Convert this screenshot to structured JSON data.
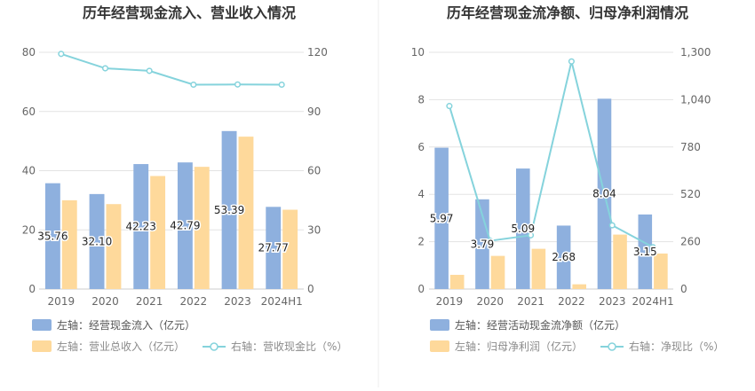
{
  "colors": {
    "bar_primary": "#8eb0de",
    "bar_secondary": "#fed99b",
    "line": "#85d3dc",
    "grid": "#e3e3e3",
    "divider": "#eeeeee"
  },
  "chart_data": [
    {
      "type": "bar",
      "title": "历年经营现金流入、营业收入情况",
      "categories": [
        "2019",
        "2020",
        "2021",
        "2022",
        "2023",
        "2024H1"
      ],
      "series": [
        {
          "name": "左轴：经营现金流入（亿元）",
          "axis": "left",
          "kind": "bar",
          "values": [
            35.76,
            32.1,
            42.23,
            42.79,
            53.39,
            27.77
          ],
          "labels": [
            "35.76",
            "32.10",
            "42.23",
            "42.79",
            "53.39",
            "27.77"
          ]
        },
        {
          "name": "左轴：营业总收入（亿元）",
          "axis": "left",
          "kind": "bar",
          "values": [
            30.0,
            28.7,
            38.2,
            41.3,
            51.5,
            26.8
          ]
        },
        {
          "name": "右轴：营收现金比（%）",
          "axis": "right",
          "kind": "line",
          "values": [
            119.2,
            111.9,
            110.6,
            103.6,
            103.7,
            103.6
          ]
        }
      ],
      "left_axis": {
        "min": 0,
        "max": 80,
        "ticks": [
          "0",
          "20",
          "40",
          "60",
          "80"
        ]
      },
      "right_axis": {
        "min": 0,
        "max": 120,
        "ticks": [
          "0",
          "30",
          "60",
          "90",
          "120"
        ]
      },
      "grid": true,
      "legend_position": "bottom"
    },
    {
      "type": "bar",
      "title": "历年经营现金流净额、归母净利润情况",
      "categories": [
        "2019",
        "2020",
        "2021",
        "2022",
        "2023",
        "2024H1"
      ],
      "series": [
        {
          "name": "左轴：经营活动现金流净额（亿元）",
          "axis": "left",
          "kind": "bar",
          "values": [
            5.97,
            3.79,
            5.09,
            2.68,
            8.04,
            3.15
          ],
          "labels": [
            "5.97",
            "3.79",
            "5.09",
            "2.68",
            "8.04",
            "3.15"
          ]
        },
        {
          "name": "左轴：归母净利润（亿元）",
          "axis": "left",
          "kind": "bar",
          "values": [
            0.6,
            1.4,
            1.7,
            0.2,
            2.3,
            1.5
          ]
        },
        {
          "name": "右轴：净现比（%）",
          "axis": "right",
          "kind": "line",
          "values": [
            1005,
            265,
            295,
            1250,
            350,
            230
          ]
        }
      ],
      "left_axis": {
        "min": 0,
        "max": 10,
        "ticks": [
          "0",
          "2",
          "4",
          "6",
          "8",
          "10"
        ]
      },
      "right_axis": {
        "min": 0,
        "max": 1300,
        "ticks": [
          "0",
          "260",
          "520",
          "780",
          "1,040",
          "1,300"
        ]
      },
      "grid": true,
      "legend_position": "bottom"
    }
  ]
}
